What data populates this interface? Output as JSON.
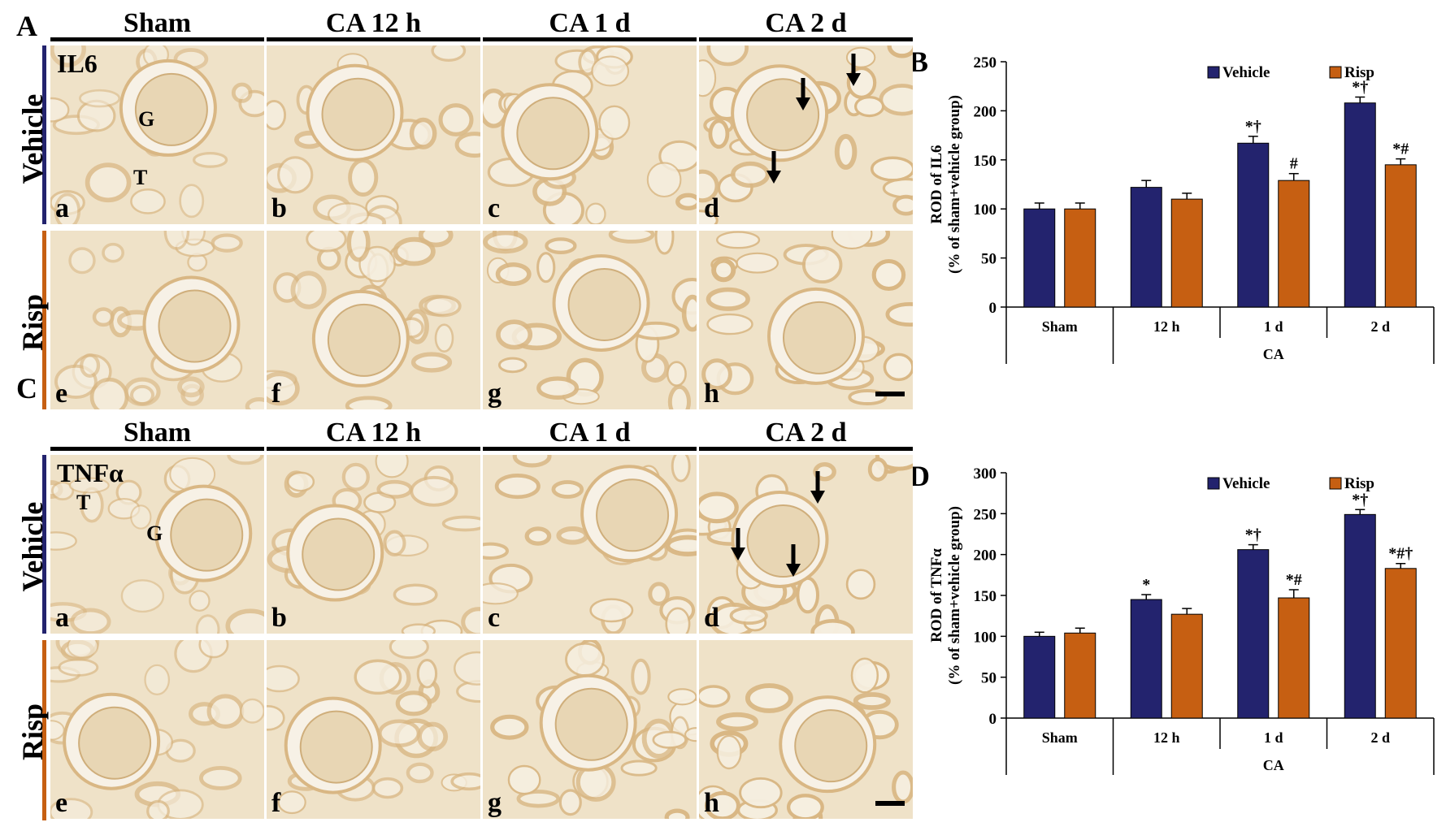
{
  "panels": {
    "A": "A",
    "B": "B",
    "C": "C",
    "D": "D"
  },
  "micrographs": [
    {
      "id": "top",
      "columns": [
        "Sham",
        "CA 12 h",
        "CA 1 d",
        "CA 2 d"
      ],
      "rows": [
        "Vehicle",
        "Risp"
      ],
      "stain": "IL6",
      "tile_letters": [
        "a",
        "b",
        "c",
        "d",
        "e",
        "f",
        "g",
        "h"
      ],
      "markers": [
        "G",
        "T"
      ]
    },
    {
      "id": "bottom",
      "columns": [
        "Sham",
        "CA 12 h",
        "CA 1 d",
        "CA 2 d"
      ],
      "rows": [
        "Vehicle",
        "Risp"
      ],
      "stain": "TNFα",
      "tile_letters": [
        "a",
        "b",
        "c",
        "d",
        "e",
        "f",
        "g",
        "h"
      ],
      "markers": [
        "T",
        "G"
      ]
    }
  ],
  "colors": {
    "vehicle": "#23236e",
    "risp": "#c65f12",
    "tissue_bg": "#efe2c8",
    "tissue_stain": "#d9b784"
  },
  "chart_data": [
    {
      "panel": "B",
      "type": "bar",
      "categories": [
        "Sham",
        "12 h",
        "1 d",
        "2 d"
      ],
      "group_label": "CA",
      "series": [
        {
          "name": "Vehicle",
          "values": [
            100,
            122,
            167,
            208
          ],
          "errors": [
            6,
            7,
            7,
            6
          ],
          "annotations": [
            "",
            "",
            "*†",
            "*†"
          ]
        },
        {
          "name": "Risp",
          "values": [
            100,
            110,
            129,
            145
          ],
          "errors": [
            6,
            6,
            7,
            6
          ],
          "annotations": [
            "",
            "",
            "#",
            "*#"
          ]
        }
      ],
      "ylabel_line1": "ROD of IL6",
      "ylabel_line2": "(% of sham+vehicle group)",
      "ylim": [
        0,
        250
      ],
      "yticks": [
        "0",
        "50",
        "100",
        "150",
        "200",
        "250"
      ],
      "legend": "top-right"
    },
    {
      "panel": "D",
      "type": "bar",
      "categories": [
        "Sham",
        "12 h",
        "1 d",
        "2 d"
      ],
      "group_label": "CA",
      "series": [
        {
          "name": "Vehicle",
          "values": [
            100,
            145,
            206,
            249
          ],
          "errors": [
            5,
            6,
            6,
            6
          ],
          "annotations": [
            "",
            "*",
            "*†",
            "*†"
          ]
        },
        {
          "name": "Risp",
          "values": [
            104,
            127,
            147,
            183
          ],
          "errors": [
            6,
            7,
            10,
            6
          ],
          "annotations": [
            "",
            "",
            "*#",
            "*#†"
          ]
        }
      ],
      "ylabel_line1": "ROD of TNFα",
      "ylabel_line2": "(% of sham+vehicle group)",
      "ylim": [
        0,
        300
      ],
      "yticks": [
        "0",
        "50",
        "100",
        "150",
        "200",
        "250",
        "300"
      ],
      "legend": "top-right"
    }
  ]
}
